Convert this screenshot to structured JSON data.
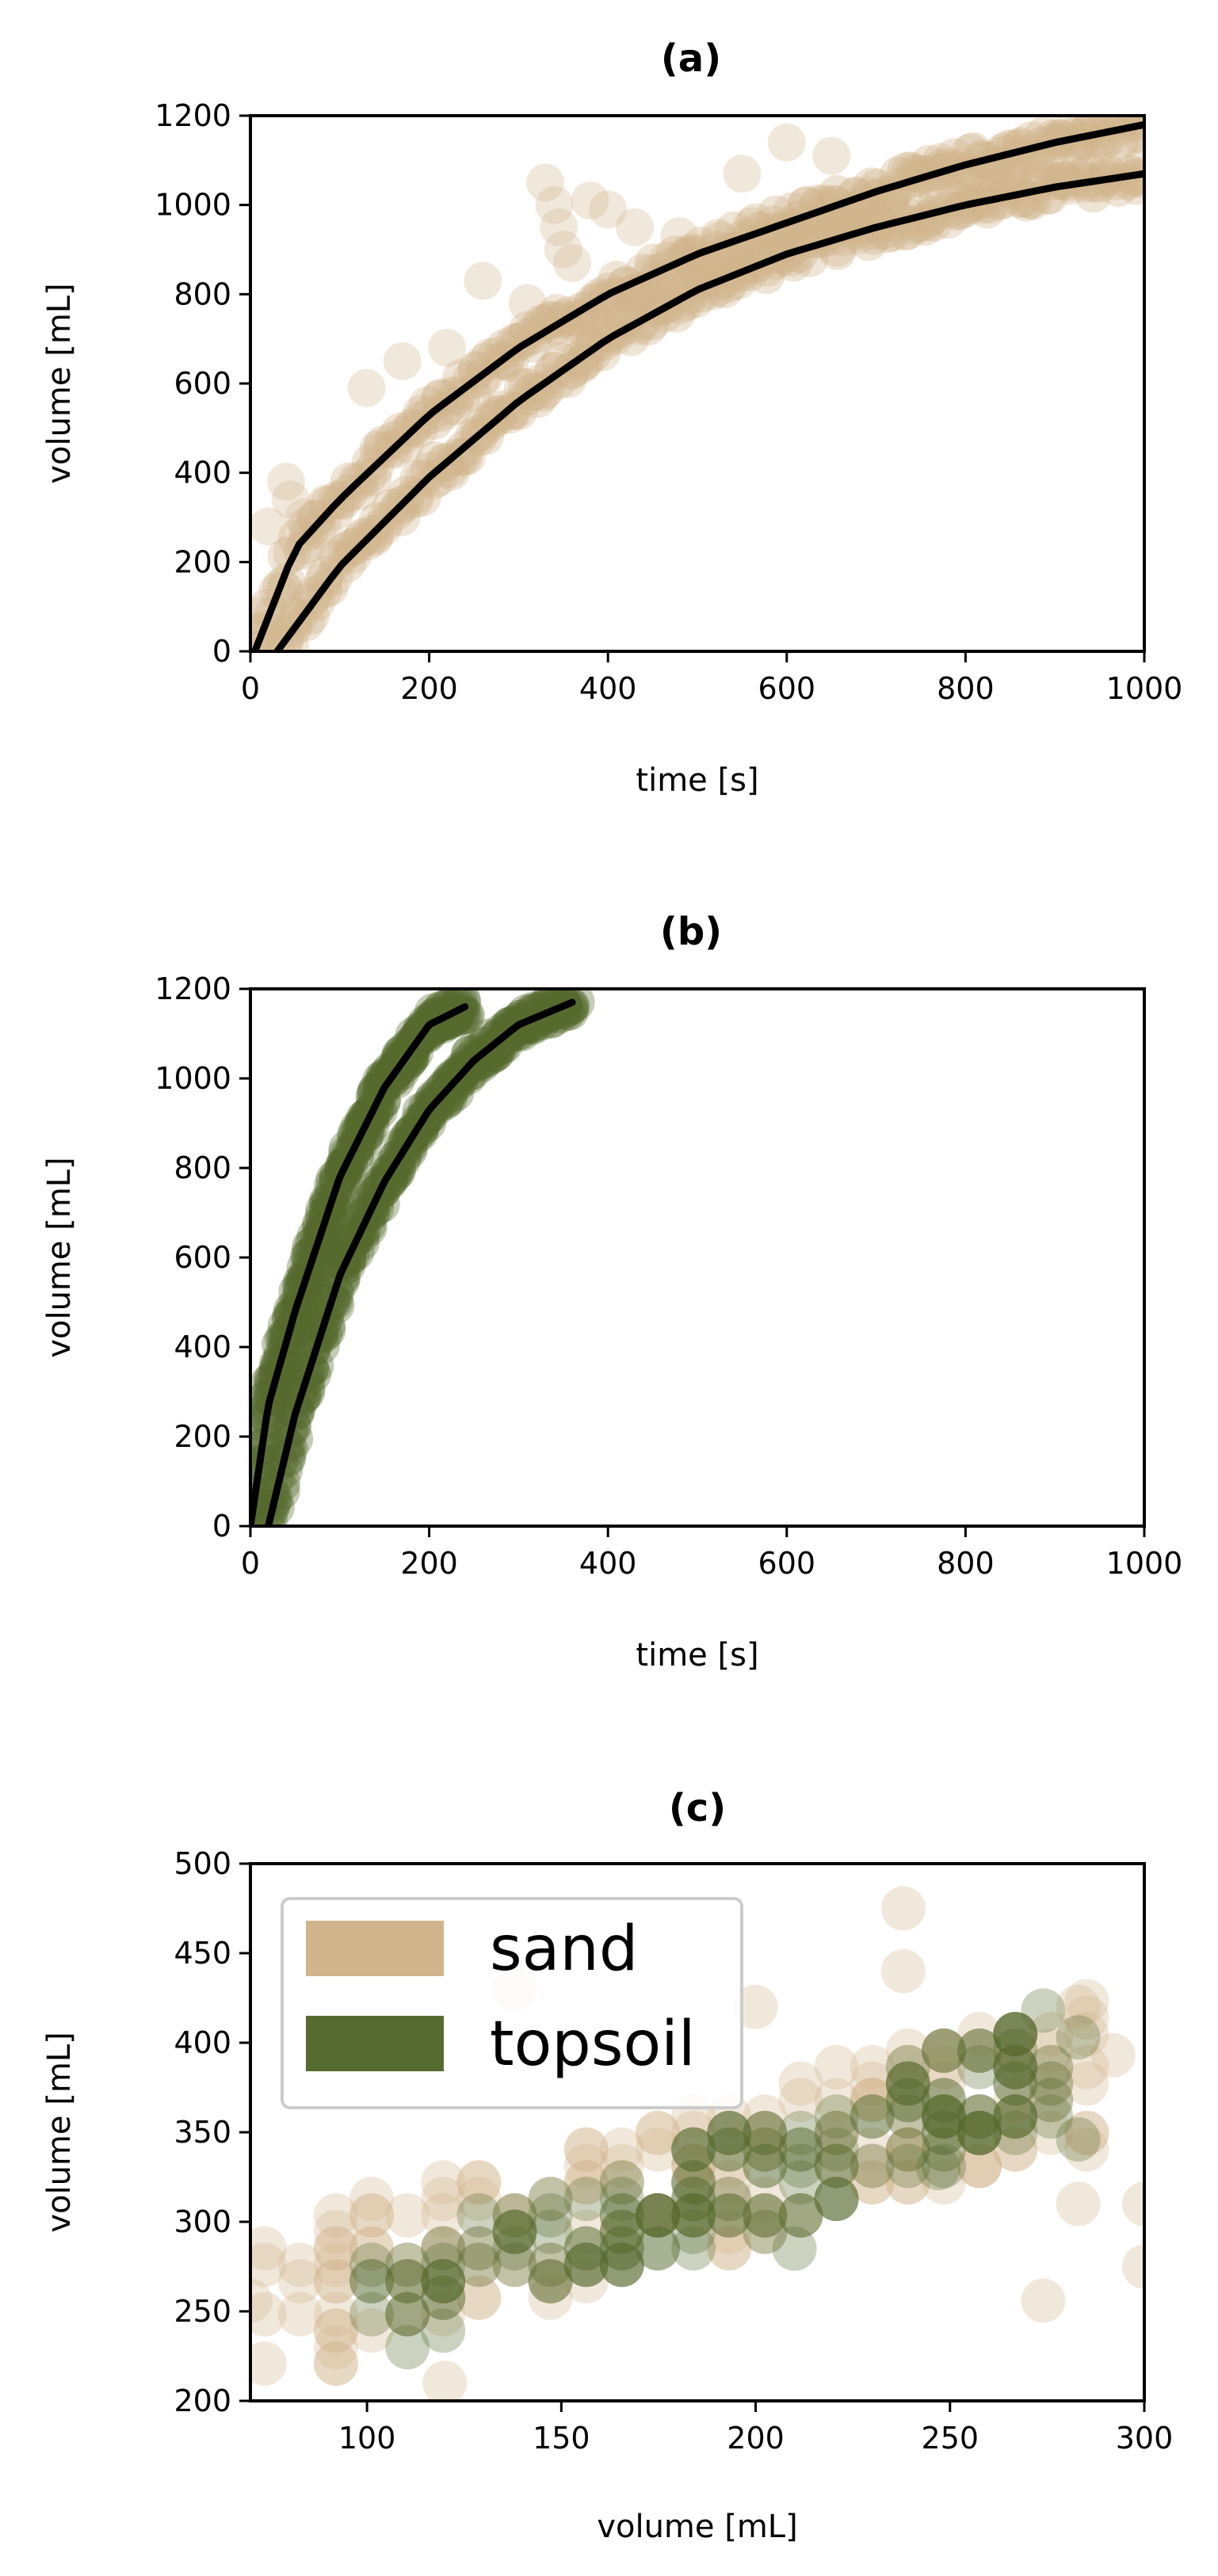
{
  "colors": {
    "sand": "#d2b48c",
    "topsoil": "#556b2f",
    "fit": "#000000"
  },
  "chart_data": [
    {
      "type": "scatter",
      "title": "(a)",
      "xlabel": "time [s]",
      "ylabel": "volume [mL]",
      "xlim": [
        0,
        1000
      ],
      "ylim": [
        0,
        1200
      ],
      "xticks": [
        "0",
        "200",
        "400",
        "600",
        "800",
        "1000"
      ],
      "yticks": [
        "0",
        "200",
        "400",
        "600",
        "800",
        "1000",
        "1200"
      ],
      "grid": false,
      "series": [
        {
          "name": "sand",
          "color": "sand",
          "runs": [
            {
              "x": [
                30,
                100,
                200,
                300,
                400,
                500,
                600,
                700,
                800,
                900,
                1000
              ],
              "y": [
                0,
                190,
                390,
                560,
                700,
                810,
                890,
                950,
                1000,
                1040,
                1070
              ]
            },
            {
              "x": [
                5,
                50,
                100,
                200,
                300,
                400,
                500,
                600,
                700,
                800,
                900,
                1000
              ],
              "y": [
                0,
                230,
                340,
                530,
                680,
                800,
                890,
                960,
                1030,
                1090,
                1140,
                1180
              ]
            }
          ],
          "outliers": [
            {
              "x": 330,
              "y": 1050
            },
            {
              "x": 340,
              "y": 1000
            },
            {
              "x": 345,
              "y": 950
            },
            {
              "x": 350,
              "y": 900
            },
            {
              "x": 360,
              "y": 870
            },
            {
              "x": 380,
              "y": 1010
            },
            {
              "x": 400,
              "y": 990
            },
            {
              "x": 430,
              "y": 950
            },
            {
              "x": 260,
              "y": 830
            },
            {
              "x": 170,
              "y": 650
            },
            {
              "x": 130,
              "y": 590
            },
            {
              "x": 40,
              "y": 380
            },
            {
              "x": 45,
              "y": 340
            },
            {
              "x": 20,
              "y": 280
            },
            {
              "x": 600,
              "y": 1140
            },
            {
              "x": 550,
              "y": 1070
            },
            {
              "x": 650,
              "y": 1110
            },
            {
              "x": 310,
              "y": 780
            },
            {
              "x": 220,
              "y": 680
            },
            {
              "x": 10,
              "y": 80
            },
            {
              "x": 60,
              "y": 300
            },
            {
              "x": 480,
              "y": 930
            }
          ],
          "fits": [
            {
              "x": [
                30,
                100,
                200,
                300,
                400,
                500,
                600,
                700,
                800,
                900,
                1000
              ],
              "y": [
                0,
                190,
                390,
                560,
                700,
                810,
                890,
                950,
                1000,
                1040,
                1070
              ]
            },
            {
              "x": [
                5,
                50,
                100,
                200,
                300,
                400,
                500,
                600,
                700,
                800,
                900,
                1000
              ],
              "y": [
                0,
                230,
                340,
                530,
                680,
                800,
                890,
                960,
                1030,
                1090,
                1140,
                1180
              ]
            }
          ]
        }
      ]
    },
    {
      "type": "scatter",
      "title": "(b)",
      "xlabel": "time [s]",
      "ylabel": "volume [mL]",
      "xlim": [
        0,
        1000
      ],
      "ylim": [
        0,
        1200
      ],
      "xticks": [
        "0",
        "200",
        "400",
        "600",
        "800",
        "1000"
      ],
      "yticks": [
        "0",
        "200",
        "400",
        "600",
        "800",
        "1000",
        "1200"
      ],
      "grid": false,
      "series": [
        {
          "name": "topsoil",
          "color": "topsoil",
          "runs": [
            {
              "x": [
                0,
                20,
                50,
                100,
                150,
                200,
                240
              ],
              "y": [
                0,
                270,
                480,
                780,
                980,
                1120,
                1160
              ]
            },
            {
              "x": [
                20,
                50,
                100,
                150,
                200,
                250,
                300,
                360
              ],
              "y": [
                0,
                250,
                560,
                770,
                930,
                1040,
                1120,
                1170
              ]
            }
          ],
          "fits": [
            {
              "x": [
                0,
                20,
                50,
                100,
                150,
                200,
                240
              ],
              "y": [
                0,
                270,
                480,
                780,
                980,
                1120,
                1160
              ]
            },
            {
              "x": [
                20,
                50,
                100,
                150,
                200,
                250,
                300,
                360
              ],
              "y": [
                0,
                250,
                560,
                770,
                930,
                1040,
                1120,
                1170
              ]
            }
          ]
        }
      ]
    },
    {
      "type": "scatter",
      "title": "(c)",
      "xlabel": "volume [mL]",
      "ylabel": "volume [mL]",
      "xlim": [
        70,
        300
      ],
      "ylim": [
        200,
        500
      ],
      "xticks": [
        "100",
        "150",
        "200",
        "250",
        "300"
      ],
      "yticks": [
        "200",
        "250",
        "300",
        "350",
        "400",
        "450",
        "500"
      ],
      "grid": false,
      "legend_position": "top-left",
      "legend": [
        {
          "label": "sand",
          "color": "sand"
        },
        {
          "label": "topsoil",
          "color": "topsoil"
        }
      ],
      "series": [
        {
          "name": "sand",
          "color": "sand",
          "trend": {
            "x0": 75,
            "y0": 255,
            "x1": 290,
            "y1": 385,
            "spread": 40
          },
          "points": [
            {
              "x": 120,
              "y": 210
            },
            {
              "x": 238,
              "y": 475
            },
            {
              "x": 238,
              "y": 440
            },
            {
              "x": 300,
              "y": 310
            },
            {
              "x": 300,
              "y": 275
            },
            {
              "x": 292,
              "y": 393
            },
            {
              "x": 283,
              "y": 310
            },
            {
              "x": 274,
              "y": 256
            },
            {
              "x": 70,
              "y": 256
            },
            {
              "x": 138,
              "y": 430
            },
            {
              "x": 200,
              "y": 420
            },
            {
              "x": 283,
              "y": 420
            }
          ]
        },
        {
          "name": "topsoil",
          "color": "topsoil",
          "trend": {
            "x0": 100,
            "y0": 245,
            "x1": 275,
            "y1": 385,
            "spread": 32
          },
          "points": [
            {
              "x": 210,
              "y": 285
            },
            {
              "x": 247,
              "y": 330
            },
            {
              "x": 283,
              "y": 346
            },
            {
              "x": 283,
              "y": 403
            },
            {
              "x": 274,
              "y": 418
            }
          ]
        }
      ]
    }
  ]
}
